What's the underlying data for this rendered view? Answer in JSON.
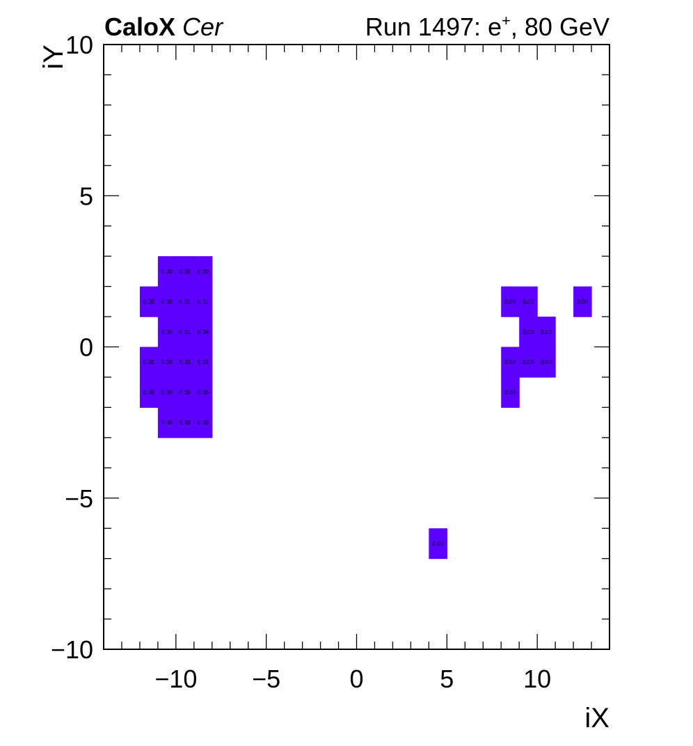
{
  "header": {
    "experiment": "CaloX",
    "channel": "Cer",
    "run_prefix": "Run 1497: e",
    "run_charge": "+",
    "run_suffix": ", 80 GeV"
  },
  "colors": {
    "cell_fill": "#5c00ff",
    "axis": "#000000",
    "background": "#ffffff"
  },
  "chart_data": {
    "type": "heatmap",
    "xlabel": "iX",
    "ylabel": "iY",
    "xlim": [
      -14,
      14
    ],
    "ylim": [
      -10,
      10
    ],
    "x_major_ticks": [
      -10,
      -5,
      0,
      5,
      10
    ],
    "y_major_ticks": [
      -10,
      -5,
      0,
      5,
      10
    ],
    "x_tick_labels": [
      "−10",
      "−5",
      "0",
      "5",
      "10"
    ],
    "y_tick_labels": [
      "−10",
      "−5",
      "0",
      "5",
      "10"
    ],
    "grid": false,
    "cells": [
      {
        "x": -11,
        "y": 2,
        "label": "0.00"
      },
      {
        "x": -10,
        "y": 2,
        "label": "0.00"
      },
      {
        "x": -9,
        "y": 2,
        "label": "0.00"
      },
      {
        "x": -12,
        "y": 1,
        "label": "0.00"
      },
      {
        "x": -11,
        "y": 1,
        "label": "0.00"
      },
      {
        "x": -10,
        "y": 1,
        "label": "0.01"
      },
      {
        "x": -9,
        "y": 1,
        "label": "0.01"
      },
      {
        "x": -11,
        "y": 0,
        "label": "0.00"
      },
      {
        "x": -10,
        "y": 0,
        "label": "0.01"
      },
      {
        "x": -9,
        "y": 0,
        "label": "0.04"
      },
      {
        "x": -12,
        "y": -1,
        "label": "0.00"
      },
      {
        "x": -11,
        "y": -1,
        "label": "0.00"
      },
      {
        "x": -10,
        "y": -1,
        "label": "0.02"
      },
      {
        "x": -9,
        "y": -1,
        "label": "0.02"
      },
      {
        "x": -12,
        "y": -2,
        "label": "0.00"
      },
      {
        "x": -11,
        "y": -2,
        "label": "0.00"
      },
      {
        "x": -10,
        "y": -2,
        "label": "0.00"
      },
      {
        "x": -9,
        "y": -2,
        "label": "0.00"
      },
      {
        "x": -11,
        "y": -3,
        "label": "0.00"
      },
      {
        "x": -10,
        "y": -3,
        "label": "0.00"
      },
      {
        "x": -9,
        "y": -3,
        "label": "0.00"
      },
      {
        "x": 8,
        "y": 1,
        "label": "0.00"
      },
      {
        "x": 9,
        "y": 1,
        "label": "0.00"
      },
      {
        "x": 12,
        "y": 1,
        "label": "0.00"
      },
      {
        "x": 9,
        "y": 0,
        "label": "0.00"
      },
      {
        "x": 10,
        "y": 0,
        "label": "0.00"
      },
      {
        "x": 8,
        "y": -1,
        "label": "0.00"
      },
      {
        "x": 9,
        "y": -1,
        "label": "0.00"
      },
      {
        "x": 10,
        "y": -1,
        "label": "0.00"
      },
      {
        "x": 8,
        "y": -2,
        "label": "0.00"
      },
      {
        "x": 4,
        "y": -7,
        "label": "0.00"
      }
    ]
  }
}
